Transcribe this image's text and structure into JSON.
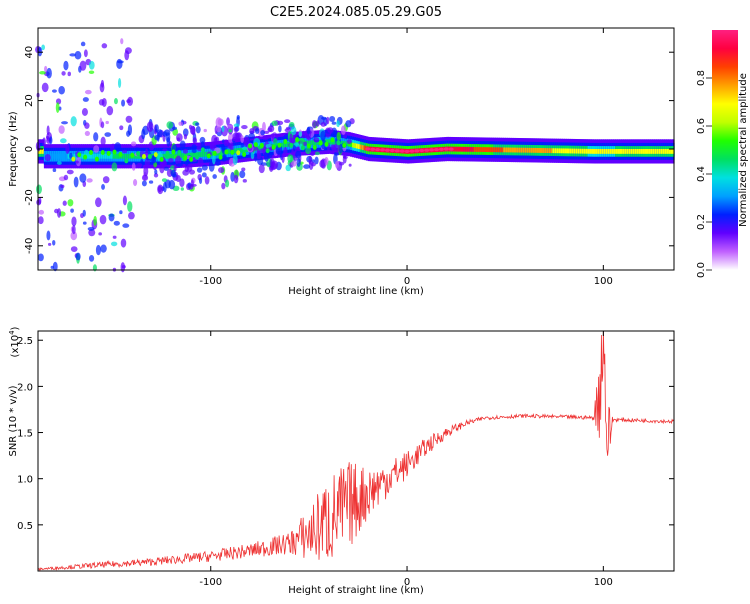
{
  "title": "C2E5.2024.085.05.29.G05",
  "chart_data": [
    {
      "type": "heatmap",
      "name": "spectrogram",
      "xlabel": "Height of straight line (km)",
      "ylabel": "Frequency (Hz)",
      "xlim": [
        -188,
        136
      ],
      "ylim": [
        -50,
        50
      ],
      "xticks": [
        -100,
        0,
        100
      ],
      "yticks": [
        -40,
        -20,
        0,
        20,
        40
      ],
      "colorbar": {
        "label": "Normalized spectral amplitude",
        "range": [
          0,
          1
        ],
        "ticks": [
          "0.0",
          "0.2",
          "0.4",
          "0.6",
          "0.8"
        ],
        "colors": [
          "#ffffff",
          "#c060ff",
          "#6000ff",
          "#0020ff",
          "#00a0ff",
          "#00e0e0",
          "#00e060",
          "#20ff00",
          "#c0ff00",
          "#ffff00",
          "#ffa000",
          "#ff4000",
          "#ff0040",
          "#ff2080"
        ]
      },
      "ridge": [
        {
          "x": -185,
          "freq": -3,
          "amp": 0.3
        },
        {
          "x": -160,
          "freq": -3,
          "amp": 0.4
        },
        {
          "x": -140,
          "freq": -3,
          "amp": 0.45
        },
        {
          "x": -120,
          "freq": -3,
          "amp": 0.45
        },
        {
          "x": -100,
          "freq": -2,
          "amp": 0.45
        },
        {
          "x": -80,
          "freq": 0,
          "amp": 0.45
        },
        {
          "x": -60,
          "freq": 2,
          "amp": 0.45
        },
        {
          "x": -40,
          "freq": 3,
          "amp": 0.45
        },
        {
          "x": -30,
          "freq": 2,
          "amp": 0.5
        },
        {
          "x": -20,
          "freq": 0,
          "amp": 0.9
        },
        {
          "x": 0,
          "freq": -1,
          "amp": 0.9
        },
        {
          "x": 20,
          "freq": 0,
          "amp": 0.95
        },
        {
          "x": 60,
          "freq": -0.5,
          "amp": 0.75
        },
        {
          "x": 95,
          "freq": -1,
          "amp": 0.7
        },
        {
          "x": 136,
          "freq": -1,
          "amp": 0.72
        }
      ]
    },
    {
      "type": "line",
      "name": "snr",
      "xlabel": "Height of straight line (km)",
      "ylabel": "SNR (10 * v/v)",
      "yscale_label": "(x10",
      "yscale_exp": "4",
      "xlim": [
        -188,
        136
      ],
      "ylim": [
        0,
        2.6
      ],
      "xticks": [
        -100,
        0,
        100
      ],
      "yticks": [
        "0.5",
        "1.0",
        "1.5",
        "2.0",
        "2.5"
      ],
      "color": "#ee3333",
      "x": [
        -188,
        -160,
        -130,
        -100,
        -80,
        -60,
        -50,
        -40,
        -30,
        -20,
        -10,
        0,
        10,
        20,
        30,
        40,
        60,
        80,
        95,
        98,
        100,
        102,
        105,
        120,
        136
      ],
      "y": [
        0.02,
        0.06,
        0.1,
        0.16,
        0.22,
        0.3,
        0.4,
        0.55,
        0.7,
        0.85,
        1.0,
        1.15,
        1.35,
        1.5,
        1.6,
        1.66,
        1.68,
        1.67,
        1.66,
        1.9,
        2.6,
        1.4,
        1.64,
        1.63,
        1.62
      ],
      "noise": [
        0.01,
        0.03,
        0.04,
        0.06,
        0.08,
        0.12,
        0.3,
        0.5,
        0.5,
        0.3,
        0.2,
        0.15,
        0.1,
        0.06,
        0.03,
        0.02,
        0.02,
        0.02,
        0.02,
        0.5,
        0.5,
        0.5,
        0.02,
        0.02,
        0.02
      ]
    }
  ]
}
